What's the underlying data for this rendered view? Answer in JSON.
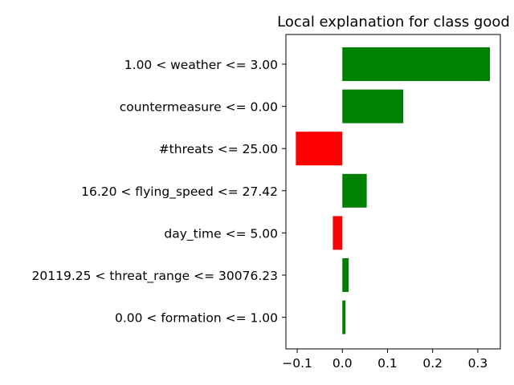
{
  "chart_data": {
    "type": "bar",
    "orientation": "horizontal",
    "title": "Local explanation for class good",
    "xlabel": "",
    "ylabel": "",
    "categories": [
      "1.00 < weather <= 3.00",
      "countermeasure <= 0.00",
      "#threats <= 25.00",
      "16.20 < flying_speed <= 27.42",
      "day_time <= 5.00",
      "20119.25 < threat_range <= 30076.23",
      "0.00 < formation <= 1.00"
    ],
    "values": [
      0.327,
      0.135,
      -0.103,
      0.054,
      -0.021,
      0.014,
      0.007
    ],
    "xlim": [
      -0.125,
      0.35
    ],
    "xticks": [
      -0.1,
      0.0,
      0.1,
      0.2,
      0.3
    ],
    "xtick_labels": [
      "−0.1",
      "0.0",
      "0.1",
      "0.2",
      "0.3"
    ],
    "colors": {
      "positive": "#008000",
      "negative": "#ff0000"
    },
    "grid": false,
    "legend": "none"
  }
}
